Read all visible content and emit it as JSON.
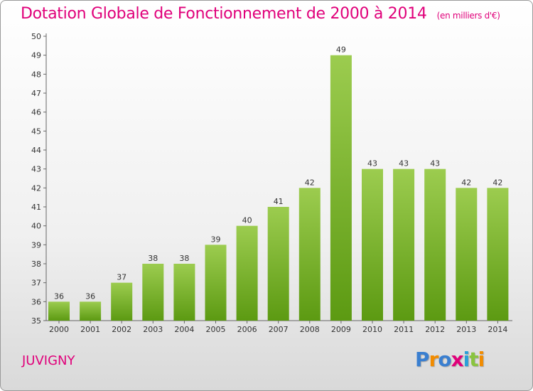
{
  "chart_data": {
    "type": "bar",
    "title": "Dotation Globale de Fonctionnement de 2000 à 2014",
    "subtitle": "(en milliers d'€)",
    "categories": [
      "2000",
      "2001",
      "2002",
      "2003",
      "2004",
      "2005",
      "2006",
      "2007",
      "2008",
      "2009",
      "2010",
      "2011",
      "2012",
      "2013",
      "2014"
    ],
    "values": [
      36,
      36,
      37,
      38,
      38,
      39,
      40,
      41,
      42,
      49,
      43,
      43,
      43,
      42,
      42
    ],
    "ylim": [
      35,
      50
    ],
    "yticks": [
      35,
      36,
      37,
      38,
      39,
      40,
      41,
      42,
      43,
      44,
      45,
      46,
      47,
      48,
      49,
      50
    ],
    "grid": false,
    "colors": {
      "bar_top": "#9ccc4f",
      "bar_bottom": "#5c9a12",
      "title": "#e0007a"
    }
  },
  "commune": "JUVIGNY",
  "logo": {
    "letters": [
      "P",
      "r",
      "o",
      "x",
      "i",
      "t",
      "i"
    ],
    "colors": [
      "#3a7fd0",
      "#f28c00",
      "#3a7fd0",
      "#e0007a",
      "#2aa0d8",
      "#8ac43f",
      "#f28c00"
    ]
  }
}
